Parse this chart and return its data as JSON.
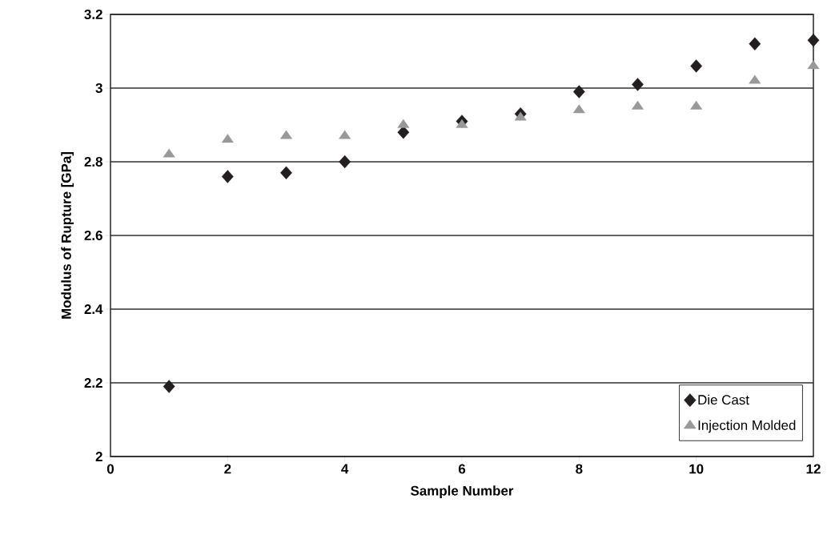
{
  "chart_data": {
    "type": "scatter",
    "xlabel": "Sample Number",
    "ylabel": "Modulus of Rupture [GPa]",
    "x": [
      1,
      2,
      3,
      4,
      5,
      6,
      7,
      8,
      9,
      10,
      11,
      12
    ],
    "series": [
      {
        "name": "Die Cast",
        "color": "#231f20",
        "marker": "diamond",
        "values": [
          2.19,
          2.76,
          2.77,
          2.8,
          2.88,
          2.91,
          2.93,
          2.99,
          3.01,
          3.06,
          3.12,
          3.13
        ]
      },
      {
        "name": "Injection Molded",
        "color": "#999999",
        "marker": "triangle",
        "values": [
          2.82,
          2.86,
          2.87,
          2.87,
          2.9,
          2.9,
          2.92,
          2.94,
          2.95,
          2.95,
          3.02,
          3.06
        ]
      }
    ],
    "xlim": [
      0,
      12
    ],
    "ylim": [
      2,
      3.2
    ],
    "xticks": [
      0,
      2,
      4,
      6,
      8,
      10,
      12
    ],
    "yticks": [
      2,
      2.2,
      2.4,
      2.6,
      2.8,
      3,
      3.2
    ],
    "grid": "y",
    "legend": "bottom right"
  }
}
